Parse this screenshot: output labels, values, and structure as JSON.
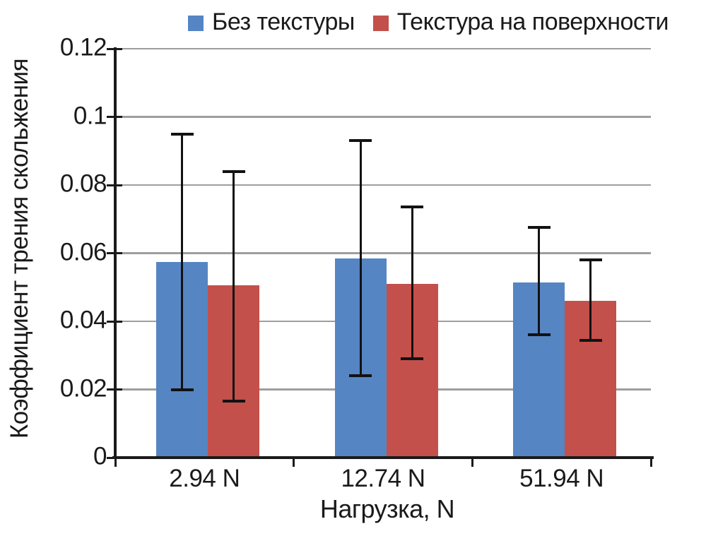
{
  "chart_data": {
    "type": "bar",
    "title": "",
    "xlabel": "Нагрузка, N",
    "ylabel": "Коэффициент трения скольжения",
    "categories": [
      "2.94 N",
      "12.74 N",
      "51.94 N"
    ],
    "series": [
      {
        "name": "Без текстуры",
        "color": "#5585c3",
        "values": [
          0.0575,
          0.0585,
          0.0515
        ],
        "error_low": [
          0.02,
          0.024,
          0.036
        ],
        "error_high": [
          0.095,
          0.093,
          0.0675
        ]
      },
      {
        "name": "Текстура на поверхности",
        "color": "#c3504b",
        "values": [
          0.0505,
          0.051,
          0.046
        ],
        "error_low": [
          0.0165,
          0.029,
          0.0345
        ],
        "error_high": [
          0.084,
          0.0735,
          0.058
        ]
      }
    ],
    "y_ticks": [
      {
        "v": 0,
        "label": "0"
      },
      {
        "v": 0.02,
        "label": "0.02"
      },
      {
        "v": 0.04,
        "label": "0.04"
      },
      {
        "v": 0.06,
        "label": "0.06"
      },
      {
        "v": 0.08,
        "label": "0.08"
      },
      {
        "v": 0.1,
        "label": "0.1"
      },
      {
        "v": 0.12,
        "label": "0.12"
      }
    ],
    "ylim": [
      0,
      0.12
    ],
    "grid": "horizontal",
    "legend_position": "top",
    "error_bars": true
  },
  "colors": {
    "grid": "#9e9e9e",
    "axis": "#1a1a1a",
    "error_bar": "#121212",
    "text": "#1a1a1a",
    "background": "#ffffff"
  }
}
